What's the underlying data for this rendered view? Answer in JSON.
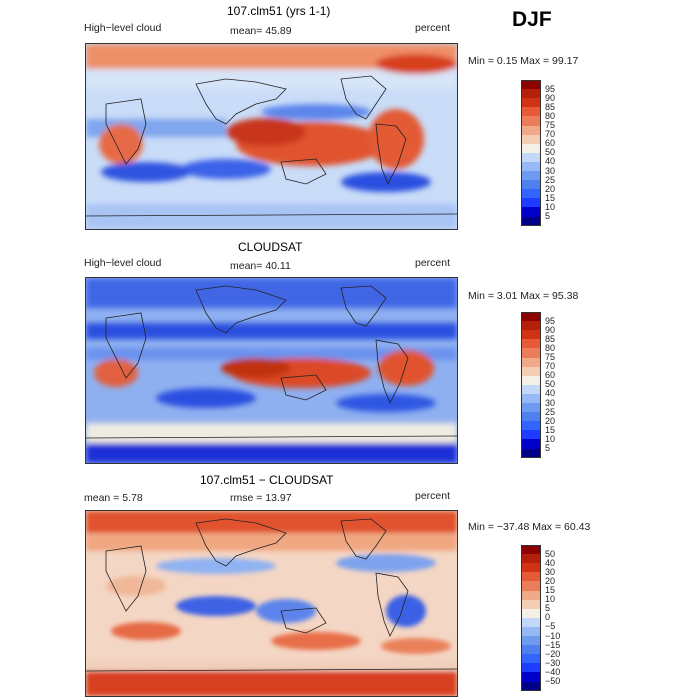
{
  "season": "DJF",
  "panels": [
    {
      "id": "model",
      "title": "107.clm51 (yrs 1-1)",
      "left_label": "High−level cloud",
      "mean_label": "mean=  45.89",
      "units": "percent",
      "minmax": "Min =    0.15 Max =   99.17"
    },
    {
      "id": "obs",
      "title": "CLOUDSAT",
      "left_label": "High−level cloud",
      "mean_label": "mean=  40.11",
      "units": "percent",
      "minmax": "Min =    3.01 Max =   95.38"
    },
    {
      "id": "diff",
      "title": "107.clm51 − CLOUDSAT",
      "left_label": "mean =    5.78",
      "mean_label": "rmse =   13.97",
      "units": "percent",
      "minmax": "Min = −37.48 Max =   60.43"
    }
  ],
  "chart_data": [
    {
      "type": "heatmap",
      "title": "107.clm51 (yrs 1-1)",
      "variable": "High-level cloud",
      "units": "percent",
      "mean": 45.89,
      "min": 0.15,
      "max": 99.17,
      "colorbar_levels": [
        5,
        10,
        15,
        20,
        25,
        30,
        40,
        50,
        60,
        70,
        75,
        80,
        85,
        90,
        95
      ],
      "colorbar_colors": [
        "#00008b",
        "#0000cd",
        "#1e3cff",
        "#3264ff",
        "#5080f0",
        "#6e9bf0",
        "#96b9f5",
        "#c3d7f8",
        "#f5f0e6",
        "#f5cdb4",
        "#f0aa87",
        "#eb7d5a",
        "#e65a37",
        "#d23214",
        "#b41e0a",
        "#8b0000"
      ]
    },
    {
      "type": "heatmap",
      "title": "CLOUDSAT",
      "variable": "High-level cloud",
      "units": "percent",
      "mean": 40.11,
      "min": 3.01,
      "max": 95.38,
      "colorbar_levels": [
        5,
        10,
        15,
        20,
        25,
        30,
        40,
        50,
        60,
        70,
        75,
        80,
        85,
        90,
        95
      ],
      "colorbar_colors": [
        "#00008b",
        "#0000cd",
        "#1e3cff",
        "#3264ff",
        "#5080f0",
        "#6e9bf0",
        "#96b9f5",
        "#c3d7f8",
        "#f5f0e6",
        "#f5cdb4",
        "#f0aa87",
        "#eb7d5a",
        "#e65a37",
        "#d23214",
        "#b41e0a",
        "#8b0000"
      ]
    },
    {
      "type": "heatmap",
      "title": "107.clm51 - CLOUDSAT",
      "units": "percent",
      "mean": 5.78,
      "rmse": 13.97,
      "min": -37.48,
      "max": 60.43,
      "colorbar_levels": [
        -50,
        -40,
        -30,
        -20,
        -15,
        -10,
        -5,
        0,
        5,
        10,
        15,
        20,
        30,
        40,
        50
      ],
      "colorbar_colors": [
        "#00008b",
        "#0000cd",
        "#1e3cff",
        "#3264ff",
        "#5080f0",
        "#6e9bf0",
        "#96b9f5",
        "#c3d7f8",
        "#f5f0e6",
        "#f5cdb4",
        "#f0aa87",
        "#eb7d5a",
        "#e65a37",
        "#d23214",
        "#b41e0a",
        "#8b0000"
      ]
    }
  ]
}
